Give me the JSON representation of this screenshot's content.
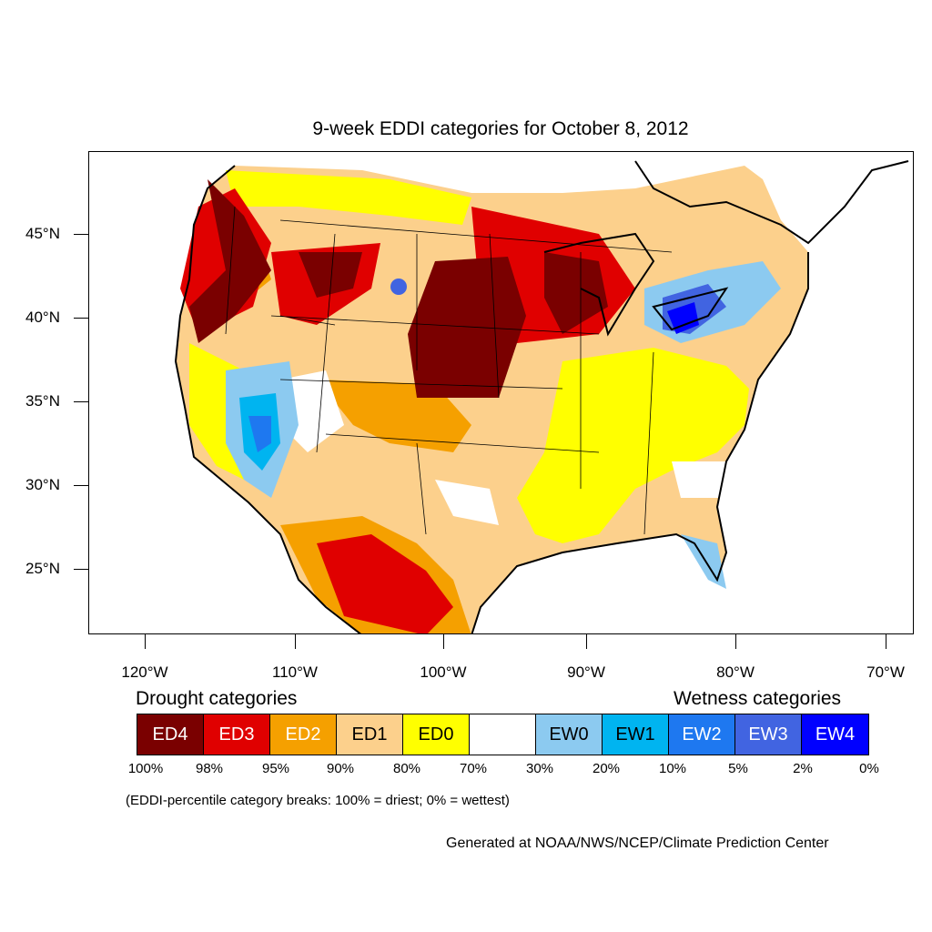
{
  "title": "9-week EDDI categories for October 8, 2012",
  "axes": {
    "lat_labels": [
      "45°N",
      "40°N",
      "35°N",
      "30°N",
      "25°N"
    ],
    "lon_labels": [
      "120°W",
      "110°W",
      "100°W",
      "90°W",
      "80°W",
      "70°W"
    ]
  },
  "legend": {
    "drought_title": "Drought categories",
    "wetness_title": "Wetness categories",
    "categories": [
      {
        "label": "ED4",
        "color": "#7a0000",
        "text_color": "#ffffff"
      },
      {
        "label": "ED3",
        "color": "#e00000",
        "text_color": "#ffffff"
      },
      {
        "label": "ED2",
        "color": "#f5a000",
        "text_color": "#ffffff"
      },
      {
        "label": "ED1",
        "color": "#fcd08c",
        "text_color": "#000000"
      },
      {
        "label": "ED0",
        "color": "#ffff00",
        "text_color": "#000000"
      },
      {
        "label": "",
        "color": "#ffffff",
        "text_color": "#000000"
      },
      {
        "label": "EW0",
        "color": "#8ccaf0",
        "text_color": "#000000"
      },
      {
        "label": "EW1",
        "color": "#00b4f0",
        "text_color": "#000000"
      },
      {
        "label": "EW2",
        "color": "#1e78f0",
        "text_color": "#ffffff"
      },
      {
        "label": "EW3",
        "color": "#4164e1",
        "text_color": "#ffffff"
      },
      {
        "label": "EW4",
        "color": "#0000ff",
        "text_color": "#ffffff"
      }
    ],
    "breaks": [
      "100%",
      "98%",
      "95%",
      "90%",
      "80%",
      "70%",
      "30%",
      "20%",
      "10%",
      "5%",
      "2%",
      "0%"
    ],
    "note": "(EDDI-percentile category breaks: 100% = driest; 0% = wettest)"
  },
  "credit": "Generated at NOAA/NWS/NCEP/Climate Prediction Center"
}
